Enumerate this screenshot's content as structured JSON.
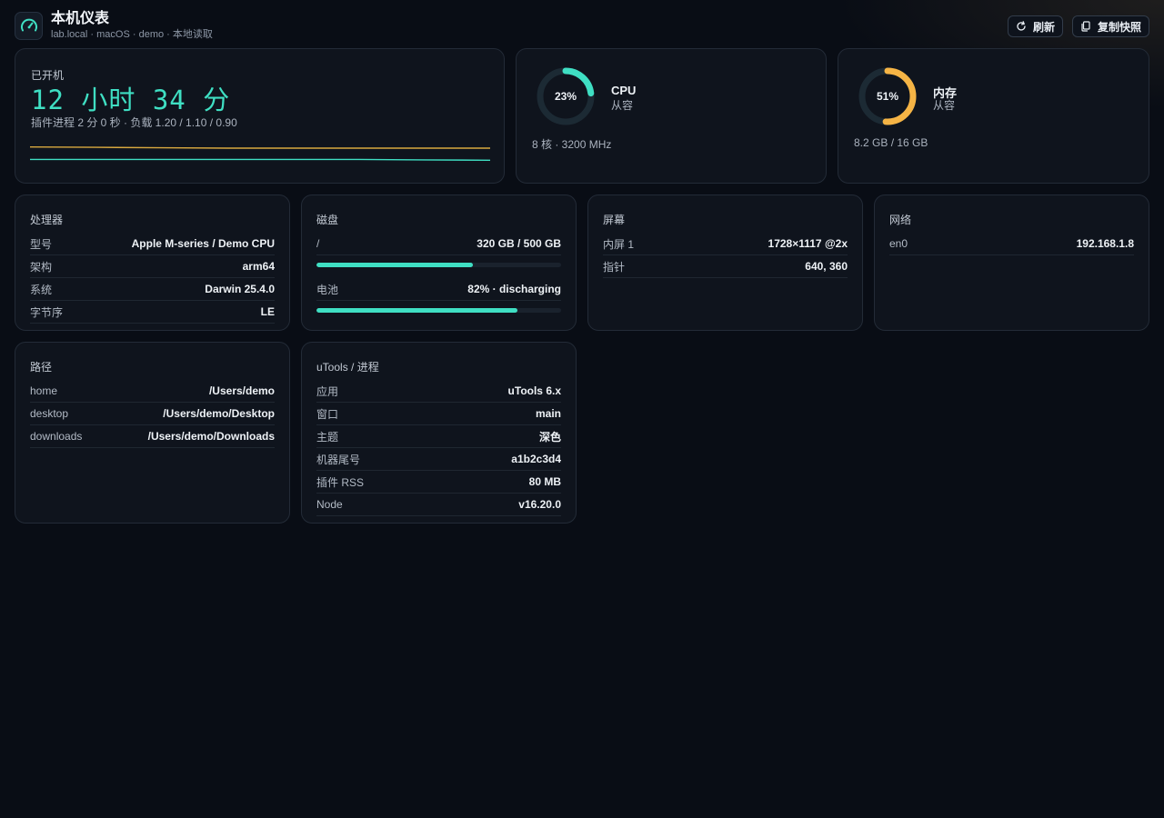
{
  "header": {
    "title": "本机仪表",
    "subtitle": "lab.local · macOS · demo · 本地读取",
    "refresh_label": "刷新",
    "copy_label": "复制快照"
  },
  "uptime": {
    "label": "已开机",
    "value": "12 小时 34 分",
    "sub": "插件进程 2 分 0 秒 · 负载 1.20 / 1.10 / 0.90",
    "sparkline": {
      "series": [
        {
          "color": "#d9a93f",
          "values": [
            1.2,
            1.19,
            1.18,
            1.17,
            1.17,
            1.17,
            1.17,
            1.17
          ]
        },
        {
          "color": "#3fdfc3",
          "values": [
            0.9,
            0.9,
            0.9,
            0.9,
            0.9,
            0.9,
            0.89,
            0.88
          ]
        }
      ]
    }
  },
  "cpu": {
    "percent_text": "23%",
    "percent": 23,
    "color": "#3fdfc3",
    "name": "CPU",
    "state": "从容",
    "detail": "8 核 · 3200 MHz"
  },
  "memory": {
    "percent_text": "51%",
    "percent": 51,
    "color": "#f5b445",
    "name": "内存",
    "state": "从容",
    "detail": "8.2 GB / 16 GB"
  },
  "processor": {
    "label": "处理器",
    "rows": [
      {
        "k": "型号",
        "v": "Apple M-series / Demo CPU"
      },
      {
        "k": "架构",
        "v": "arm64"
      },
      {
        "k": "系统",
        "v": "Darwin 25.4.0"
      },
      {
        "k": "字节序",
        "v": "LE"
      }
    ]
  },
  "disk": {
    "label": "磁盘",
    "items": [
      {
        "k": "/",
        "v": "320 GB / 500 GB",
        "fraction": 0.64
      },
      {
        "k": "电池",
        "v": "82% · discharging",
        "fraction": 0.82
      }
    ]
  },
  "screen": {
    "label": "屏幕",
    "rows": [
      {
        "k": "内屏 1",
        "v": "1728×1117 @2x"
      },
      {
        "k": "指针",
        "v": "640, 360"
      }
    ]
  },
  "network": {
    "label": "网络",
    "rows": [
      {
        "k": "en0",
        "v": "192.168.1.8"
      }
    ]
  },
  "paths": {
    "label": "路径",
    "rows": [
      {
        "k": "home",
        "v": "/Users/demo"
      },
      {
        "k": "desktop",
        "v": "/Users/demo/Desktop"
      },
      {
        "k": "downloads",
        "v": "/Users/demo/Downloads"
      }
    ]
  },
  "utools": {
    "label": "uTools / 进程",
    "rows": [
      {
        "k": "应用",
        "v": "uTools 6.x"
      },
      {
        "k": "窗口",
        "v": "main"
      },
      {
        "k": "主题",
        "v": "深色"
      },
      {
        "k": "机器尾号",
        "v": "a1b2c3d4"
      },
      {
        "k": "插件 RSS",
        "v": "80 MB"
      },
      {
        "k": "Node",
        "v": "v16.20.0"
      }
    ]
  }
}
